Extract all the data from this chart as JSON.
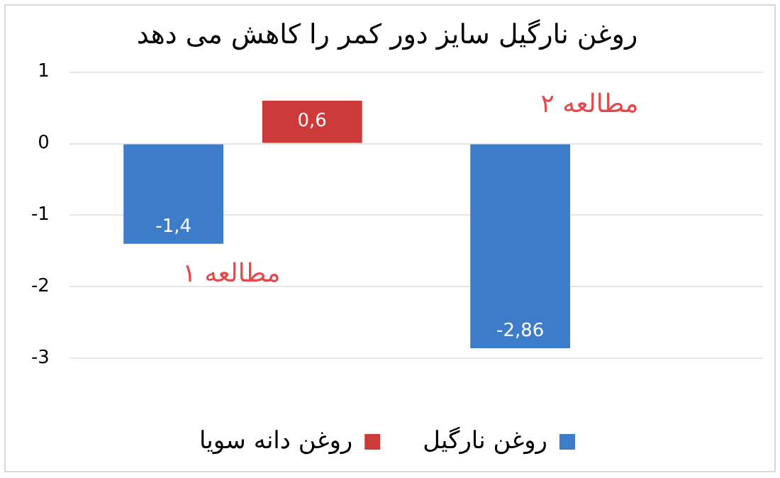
{
  "chart_data": {
    "type": "bar",
    "title": "روغن نارگیل سایز دور کمر را کاهش می دهد",
    "categories": [
      null,
      null
    ],
    "series": [
      {
        "name": "روغن نارگیل",
        "color": "#3d7cc9",
        "values": [
          -1.4,
          -2.86
        ],
        "value_labels": [
          "-1,4",
          "-2,86"
        ]
      },
      {
        "name": "روغن دانه سویا",
        "color": "#cc3a3a",
        "values": [
          0.6,
          null
        ],
        "value_labels": [
          "0,6",
          null
        ]
      }
    ],
    "ylim": [
      -3,
      1
    ],
    "yticks": [
      -3,
      -2,
      -1,
      0,
      1
    ],
    "grid": "y",
    "legend": "bottom",
    "annotations": [
      "مطالعه ۱",
      "مطالعه ۲"
    ]
  }
}
